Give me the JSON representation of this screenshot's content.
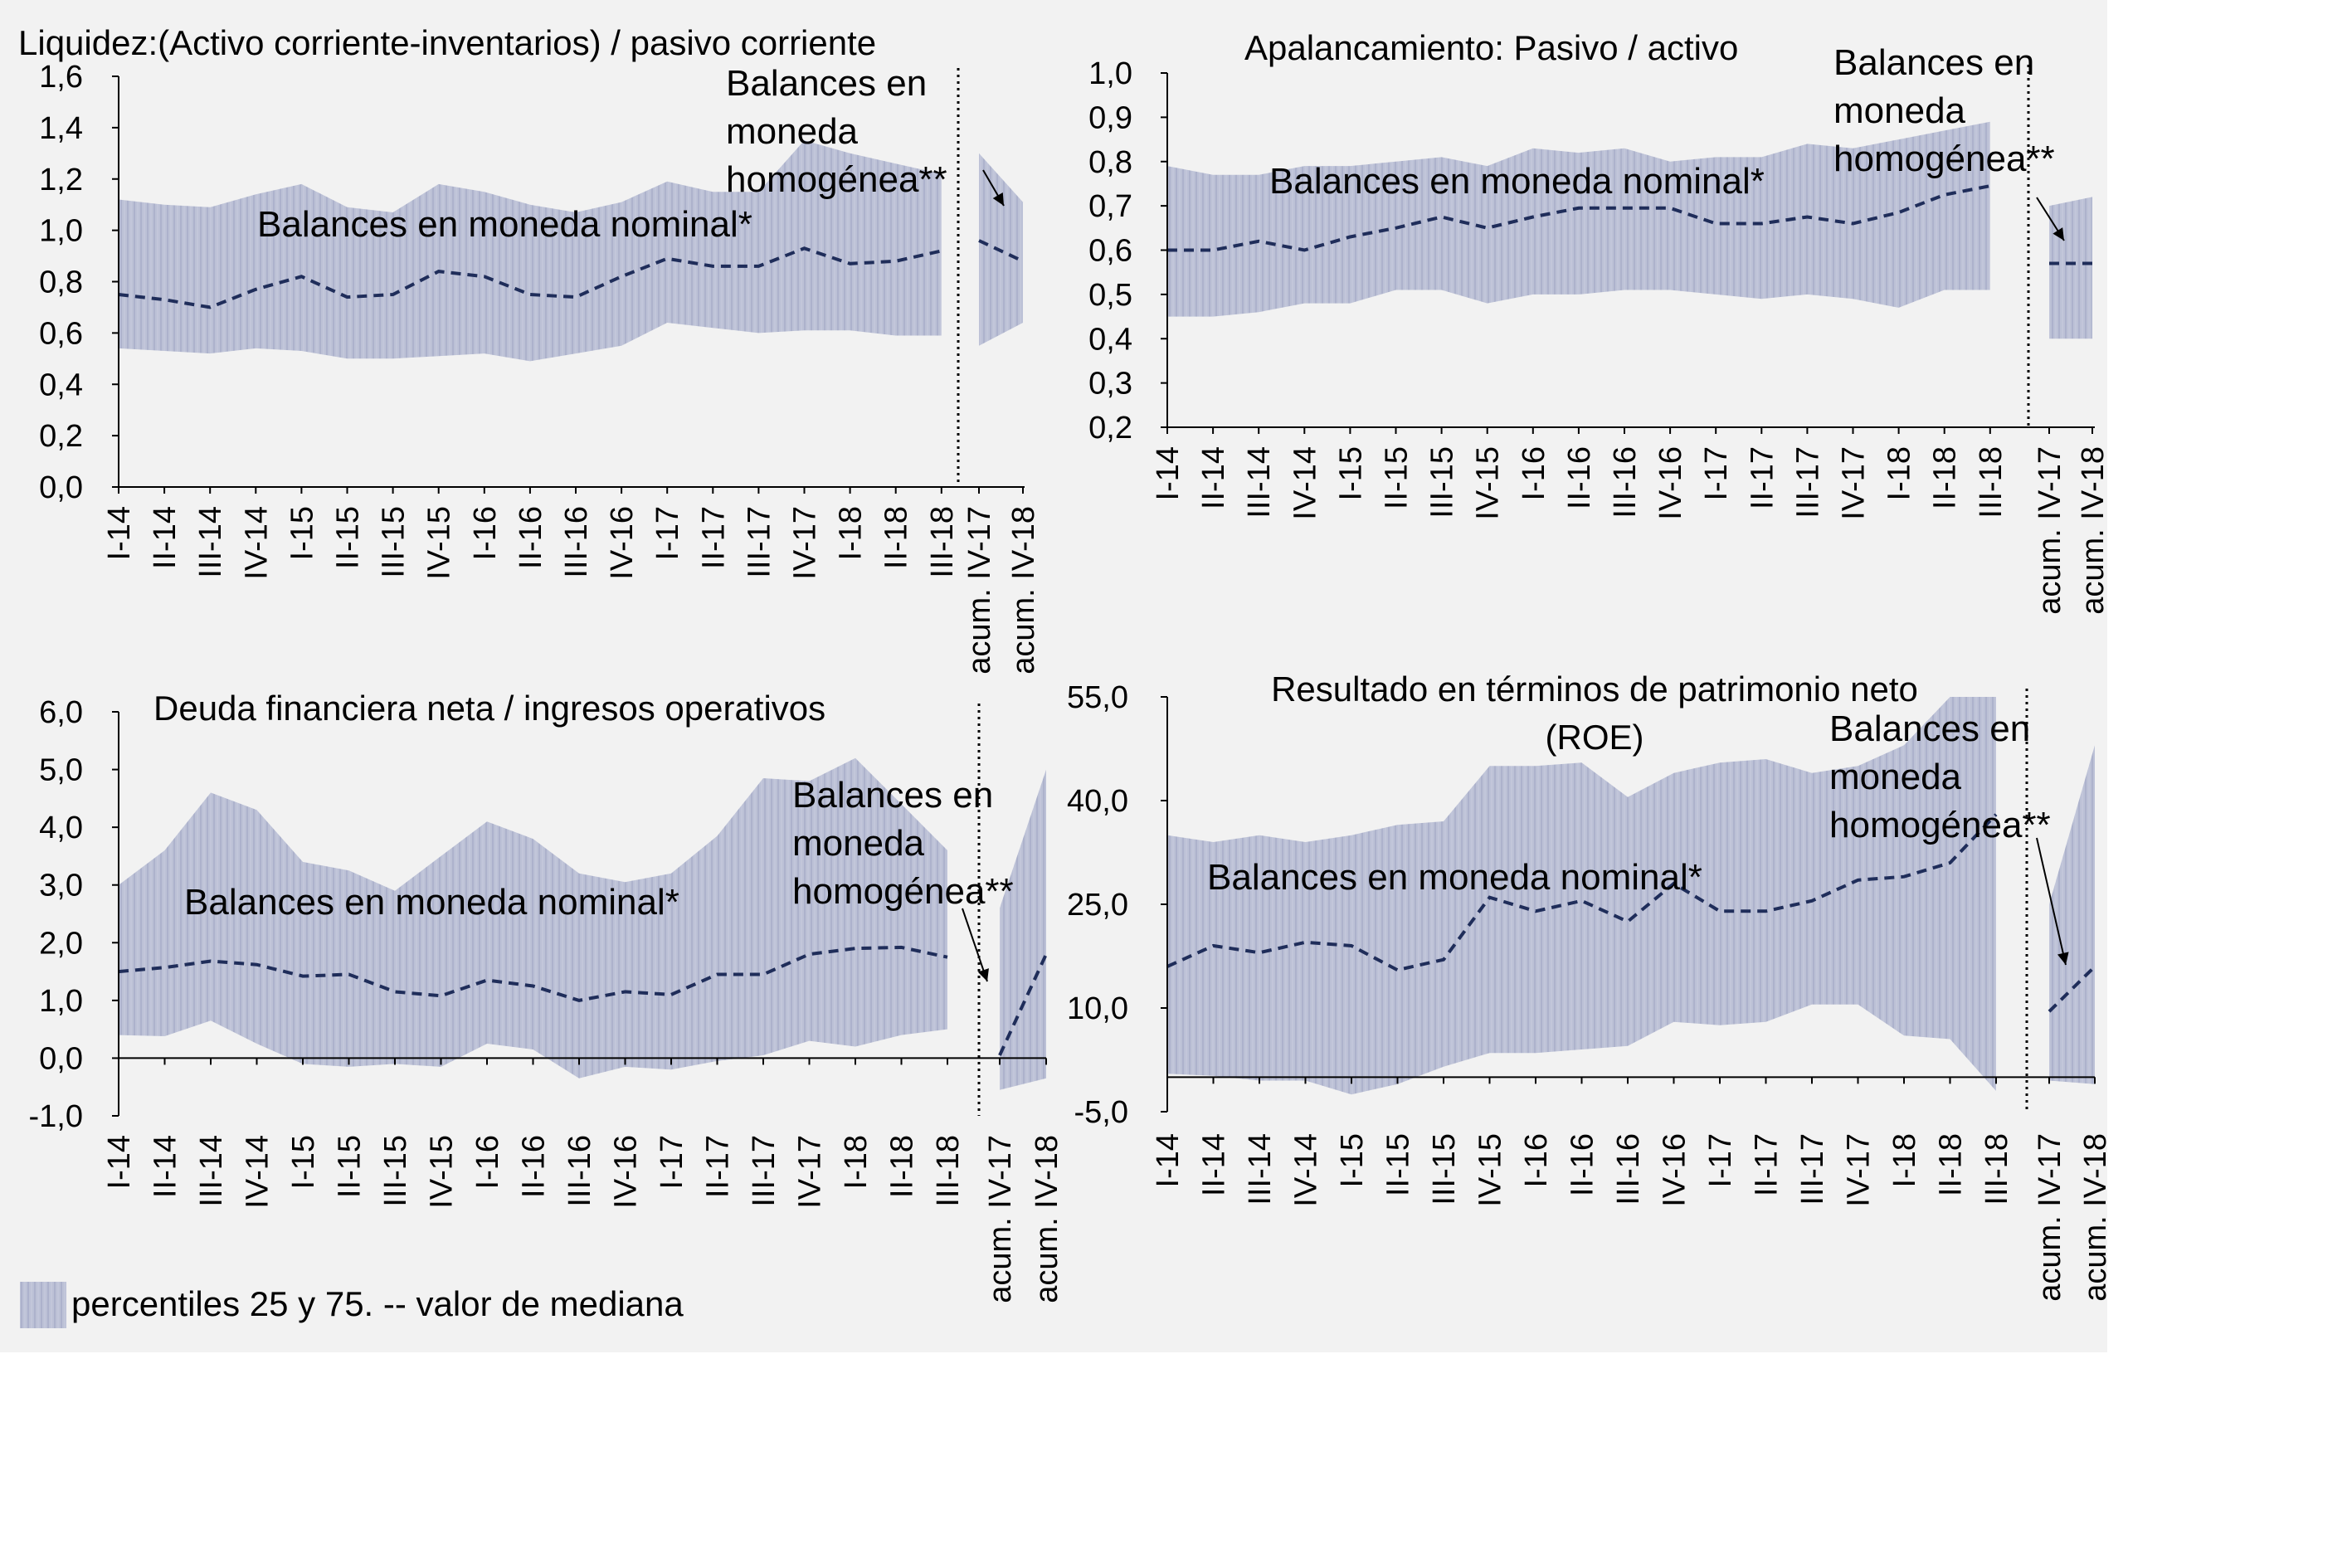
{
  "colors": {
    "background": "#f2f2f2",
    "band": "#bcc1d6",
    "band_hatch": "#a8aec8",
    "median": "#1f2d5a",
    "axis": "#000000"
  },
  "legend": {
    "text": "percentiles 25 y 75. -- valor de mediana"
  },
  "chart_data": [
    {
      "type": "area",
      "id": "liquidez",
      "title_lines": [
        "Liquidez:(Activo corriente-inventarios) / pasivo corriente"
      ],
      "categories": [
        "I-14",
        "II-14",
        "III-14",
        "IV-14",
        "I-15",
        "II-15",
        "III-15",
        "IV-15",
        "I-16",
        "II-16",
        "III-16",
        "IV-16",
        "I-17",
        "II-17",
        "III-17",
        "IV-17",
        "I-18",
        "II-18",
        "III-18",
        "acum. IV-17",
        "acum. IV-18"
      ],
      "ylim": [
        0,
        1.6
      ],
      "yticks": [
        "0,0",
        "0,2",
        "0,4",
        "0,6",
        "0,8",
        "1,0",
        "1,2",
        "1,4",
        "1,6"
      ],
      "ytick_values": [
        0,
        0.2,
        0.4,
        0.6,
        0.8,
        1.0,
        1.2,
        1.4,
        1.6
      ],
      "nominal": {
        "label": "Balances en moneda nominal*",
        "p25": [
          0.54,
          0.53,
          0.52,
          0.54,
          0.53,
          0.5,
          0.5,
          0.51,
          0.52,
          0.49,
          0.52,
          0.55,
          0.64,
          0.62,
          0.6,
          0.61,
          0.61,
          0.59,
          0.59
        ],
        "p75": [
          1.12,
          1.1,
          1.09,
          1.14,
          1.18,
          1.09,
          1.07,
          1.18,
          1.15,
          1.1,
          1.07,
          1.11,
          1.19,
          1.15,
          1.15,
          1.35,
          1.3,
          1.26,
          1.22
        ],
        "median": [
          0.75,
          0.73,
          0.7,
          0.77,
          0.82,
          0.74,
          0.75,
          0.84,
          0.82,
          0.75,
          0.74,
          0.82,
          0.89,
          0.86,
          0.86,
          0.93,
          0.87,
          0.88,
          0.92
        ]
      },
      "homogeneous": {
        "label": "Balances en moneda homogénea**",
        "p25": [
          0.55,
          0.64
        ],
        "p75": [
          1.3,
          1.11
        ],
        "median": [
          0.96,
          0.88
        ]
      },
      "zero_line": false
    },
    {
      "type": "area",
      "id": "apalancamiento",
      "title_lines": [
        "Apalancamiento: Pasivo / activo"
      ],
      "categories": [
        "I-14",
        "II-14",
        "III-14",
        "IV-14",
        "I-15",
        "II-15",
        "III-15",
        "IV-15",
        "I-16",
        "II-16",
        "III-16",
        "IV-16",
        "I-17",
        "II-17",
        "III-17",
        "IV-17",
        "I-18",
        "II-18",
        "III-18",
        "acum. IV-17",
        "acum. IV-18"
      ],
      "ylim": [
        0.2,
        1.0
      ],
      "yticks": [
        "0,2",
        "0,3",
        "0,4",
        "0,5",
        "0,6",
        "0,7",
        "0,8",
        "0,9",
        "1,0"
      ],
      "ytick_values": [
        0.2,
        0.3,
        0.4,
        0.5,
        0.6,
        0.7,
        0.8,
        0.9,
        1.0
      ],
      "nominal": {
        "label": "Balances en moneda nominal*",
        "p25": [
          0.45,
          0.45,
          0.46,
          0.48,
          0.48,
          0.51,
          0.51,
          0.48,
          0.5,
          0.5,
          0.51,
          0.51,
          0.5,
          0.49,
          0.5,
          0.49,
          0.47,
          0.51,
          0.51
        ],
        "p75": [
          0.79,
          0.77,
          0.77,
          0.79,
          0.79,
          0.8,
          0.81,
          0.79,
          0.83,
          0.82,
          0.83,
          0.8,
          0.81,
          0.81,
          0.84,
          0.83,
          0.85,
          0.87,
          0.89
        ],
        "median": [
          0.6,
          0.6,
          0.62,
          0.6,
          0.63,
          0.65,
          0.675,
          0.65,
          0.675,
          0.695,
          0.695,
          0.695,
          0.66,
          0.66,
          0.675,
          0.66,
          0.685,
          0.725,
          0.745
        ]
      },
      "homogeneous": {
        "label": "Balances en moneda homogénea**",
        "p25": [
          0.4,
          0.4
        ],
        "p75": [
          0.7,
          0.72
        ],
        "median": [
          0.57,
          0.57
        ]
      },
      "zero_line": false
    },
    {
      "type": "area",
      "id": "deuda",
      "title_lines": [
        "Deuda financiera neta / ingresos operativos"
      ],
      "categories": [
        "I-14",
        "II-14",
        "III-14",
        "IV-14",
        "I-15",
        "II-15",
        "III-15",
        "IV-15",
        "I-16",
        "II-16",
        "III-16",
        "IV-16",
        "I-17",
        "II-17",
        "III-17",
        "IV-17",
        "I-18",
        "II-18",
        "III-18",
        "acum. IV-17",
        "acum. IV-18"
      ],
      "ylim": [
        -1.0,
        6.0
      ],
      "yticks": [
        "-1,0",
        "0,0",
        "1,0",
        "2,0",
        "3,0",
        "4,0",
        "5,0",
        "6,0"
      ],
      "ytick_values": [
        -1,
        0,
        1,
        2,
        3,
        4,
        5,
        6
      ],
      "nominal": {
        "label": "Balances en moneda nominal*",
        "p25": [
          0.4,
          0.38,
          0.65,
          0.25,
          -0.1,
          -0.15,
          -0.1,
          -0.15,
          0.25,
          0.15,
          -0.35,
          -0.15,
          -0.2,
          -0.05,
          0.05,
          0.3,
          0.2,
          0.4,
          0.5
        ],
        "p75": [
          3.0,
          3.6,
          4.6,
          4.3,
          3.4,
          3.25,
          2.9,
          3.5,
          4.1,
          3.8,
          3.2,
          3.05,
          3.2,
          3.85,
          4.85,
          4.8,
          5.2,
          4.4,
          3.6
        ],
        "median": [
          1.5,
          1.57,
          1.68,
          1.62,
          1.42,
          1.45,
          1.15,
          1.08,
          1.35,
          1.25,
          1.0,
          1.15,
          1.1,
          1.45,
          1.45,
          1.8,
          1.9,
          1.92,
          1.75
        ]
      },
      "homogeneous": {
        "label": "Balances en moneda homogénea**",
        "p25": [
          -0.55,
          -0.35
        ],
        "p75": [
          2.6,
          5.0
        ],
        "median": [
          0.05,
          1.8
        ]
      },
      "zero_line": true
    },
    {
      "type": "area",
      "id": "roe",
      "title_lines": [
        "Resultado en términos de patrimonio neto",
        "(ROE)"
      ],
      "categories": [
        "I-14",
        "II-14",
        "III-14",
        "IV-14",
        "I-15",
        "II-15",
        "III-15",
        "IV-15",
        "I-16",
        "II-16",
        "III-16",
        "IV-16",
        "I-17",
        "II-17",
        "III-17",
        "IV-17",
        "I-18",
        "II-18",
        "III-18",
        "acum. IV-17",
        "acum. IV-18"
      ],
      "ylim": [
        -5.0,
        55.0
      ],
      "yticks": [
        "-5,0",
        "10,0",
        "25,0",
        "40,0",
        "55,0"
      ],
      "ytick_values": [
        -5,
        10,
        25,
        40,
        55
      ],
      "nominal": {
        "label": "Balances en moneda nominal*",
        "p25": [
          0.5,
          0.2,
          -0.5,
          -0.5,
          -2.5,
          -1.0,
          1.5,
          3.5,
          3.5,
          4.0,
          4.5,
          8.0,
          7.5,
          8.0,
          10.5,
          10.5,
          6.0,
          5.5,
          -2.0
        ],
        "p75": [
          35.0,
          34.0,
          35.0,
          34.0,
          35.0,
          36.5,
          37.0,
          45.0,
          45.0,
          45.5,
          40.5,
          44.0,
          45.5,
          46.0,
          44.0,
          45.0,
          48.0,
          55.0,
          55.0
        ],
        "median": [
          16.0,
          19.0,
          18.0,
          19.5,
          19.0,
          15.5,
          17.0,
          26.0,
          24.0,
          25.5,
          22.5,
          28.0,
          24.0,
          24.0,
          25.5,
          28.5,
          29.0,
          31.0,
          38.0
        ]
      },
      "homogeneous": {
        "label": "Balances en moneda homogénea**",
        "p25": [
          -0.5,
          -1.0
        ],
        "p75": [
          25.0,
          48.0
        ],
        "median": [
          9.5,
          16.0
        ]
      },
      "zero_line": true
    }
  ]
}
